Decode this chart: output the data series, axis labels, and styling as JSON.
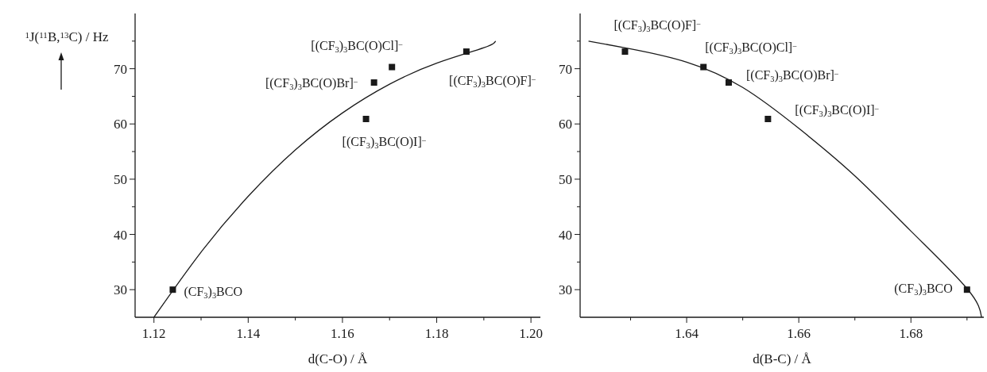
{
  "chart_data": [
    {
      "type": "scatter",
      "xlabel": "d(C-O) / Å",
      "ylabel": "$^{1}$J($^{11}$B,$^{13}$C) / Hz",
      "xlim": [
        1.116,
        1.202
      ],
      "ylim": [
        25,
        80
      ],
      "xticks": [
        1.12,
        {
          "value": 1.13,
          "label": null
        },
        1.14,
        {
          "value": 1.15,
          "label": null
        },
        1.16,
        {
          "value": 1.17,
          "label": null
        },
        1.18,
        {
          "value": 1.19,
          "label": null
        },
        {
          "value": 1.2,
          "label": "1.20"
        }
      ],
      "yticks": [
        30,
        {
          "value": 35,
          "label": null
        },
        40,
        {
          "value": 45,
          "label": null
        },
        50,
        {
          "value": 55,
          "label": null
        },
        60,
        {
          "value": 65,
          "label": null
        },
        70,
        {
          "value": 75,
          "label": null
        }
      ],
      "series": [
        {
          "marker": "square",
          "color": "#1a1a1a",
          "x": [
            1.124,
            1.1705,
            1.1667,
            1.165,
            1.1863
          ],
          "values": [
            30,
            70.3,
            67.5,
            60.9,
            73.1
          ]
        },
        {
          "type": "line",
          "marker": "none",
          "color": "#1a1a1a",
          "x": [
            1.12,
            1.13,
            1.14,
            1.15,
            1.16,
            1.17,
            1.18,
            1.19,
            1.1925
          ],
          "values": [
            25,
            36.8,
            46.9,
            55.3,
            62.0,
            67.2,
            71.0,
            73.8,
            75
          ]
        }
      ],
      "annotations": [
        {
          "text": "(CF$_{3}$)$_{3}$BCO",
          "x": 1.124,
          "y": 30
        },
        {
          "text": "[(CF$_{3}$)$_{3}$BC(O)Cl]$^{−}$",
          "x": 1.1705,
          "y": 70.3
        },
        {
          "text": "[(CF$_{3}$)$_{3}$BC(O)Br]$^{−}$",
          "x": 1.1667,
          "y": 67.5
        },
        {
          "text": "[(CF$_{3}$)$_{3}$BC(O)I]$^{−}$",
          "x": 1.165,
          "y": 60.9
        },
        {
          "text": "[(CF$_{3}$)$_{3}$BC(O)F]$^{−}$",
          "x": 1.1863,
          "y": 73.1
        }
      ]
    },
    {
      "type": "scatter",
      "xlabel": "d(B-C) / Å",
      "xlim": [
        1.621,
        1.693
      ],
      "ylim": [
        25,
        80
      ],
      "xticks": [
        {
          "value": 1.63,
          "label": null
        },
        1.64,
        {
          "value": 1.65,
          "label": null
        },
        1.66,
        {
          "value": 1.67,
          "label": null
        },
        1.68,
        {
          "value": 1.69,
          "label": null
        }
      ],
      "yticks": [
        30,
        {
          "value": 35,
          "label": null
        },
        40,
        {
          "value": 45,
          "label": null
        },
        50,
        {
          "value": 55,
          "label": null
        },
        60,
        {
          "value": 65,
          "label": null
        },
        70,
        {
          "value": 75,
          "label": null
        }
      ],
      "series": [
        {
          "marker": "square",
          "color": "#1a1a1a",
          "x": [
            1.629,
            1.643,
            1.6475,
            1.6545,
            1.69
          ],
          "values": [
            73.1,
            70.3,
            67.5,
            60.9,
            30
          ]
        },
        {
          "type": "line",
          "marker": "none",
          "color": "#1a1a1a",
          "x": [
            1.6225,
            1.63,
            1.64,
            1.65,
            1.66,
            1.67,
            1.68,
            1.69,
            1.6926
          ],
          "values": [
            75,
            73.6,
            71.2,
            66.6,
            59.2,
            50.6,
            40.6,
            30.2,
            25
          ]
        }
      ],
      "annotations": [
        {
          "text": "[(CF$_{3}$)$_{3}$BC(O)F]$^{−}$",
          "x": 1.629,
          "y": 73.1
        },
        {
          "text": "[(CF$_{3}$)$_{3}$BC(O)Cl]$^{−}$",
          "x": 1.643,
          "y": 70.3
        },
        {
          "text": "[(CF$_{3}$)$_{3}$BC(O)Br]$^{−}$",
          "x": 1.6475,
          "y": 67.5
        },
        {
          "text": "[(CF$_{3}$)$_{3}$BC(O)I]$^{−}$",
          "x": 1.6545,
          "y": 60.9
        },
        {
          "text": "(CF$_{3}$)$_{3}$BCO",
          "x": 1.69,
          "y": 30
        }
      ]
    }
  ]
}
